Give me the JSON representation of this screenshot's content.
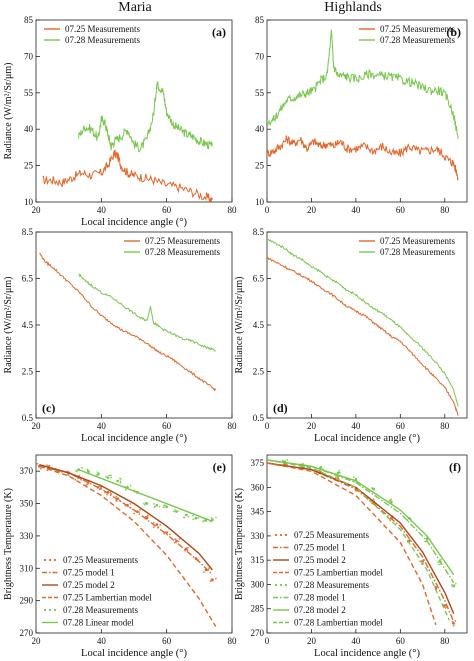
{
  "columns": [
    {
      "title": "Maria"
    },
    {
      "title": "Highlands"
    }
  ],
  "colors": {
    "orange": "#e2672a",
    "green": "#79c64f",
    "axis": "#222222"
  },
  "chart_data": [
    {
      "id": "a",
      "panel_label": "(a)",
      "type": "line",
      "xlabel": "Local incidence angle (°)",
      "ylabel": "Radiance (W/m²/Sr/μm)",
      "xlim": [
        20,
        80
      ],
      "ylim": [
        10,
        85
      ],
      "xticks": [
        "20",
        "40",
        "60",
        "80"
      ],
      "yticks": [
        "10",
        "25",
        "40",
        "55",
        "70",
        "85"
      ],
      "legend_position": "top-left",
      "series": [
        {
          "name": "07.25 Measurements",
          "color": "#e2672a",
          "x": [
            22,
            25,
            28,
            31,
            34,
            37,
            40,
            42,
            44,
            45,
            46,
            48,
            50,
            53,
            56,
            60,
            64,
            68,
            72,
            74
          ],
          "y": [
            19,
            19,
            18,
            20,
            22,
            21,
            22,
            25,
            30,
            29,
            25,
            22,
            21,
            20,
            19,
            17,
            16,
            14,
            12,
            11
          ]
        },
        {
          "name": "07.28 Measurements",
          "color": "#79c64f",
          "x": [
            33,
            35,
            37,
            39,
            40,
            41,
            42,
            43,
            44,
            46,
            48,
            50,
            52,
            54,
            56,
            57,
            58,
            59,
            60,
            62,
            64,
            66,
            68,
            70,
            72,
            74
          ],
          "y": [
            37,
            41,
            40,
            36,
            44,
            43,
            38,
            33,
            35,
            37,
            40,
            34,
            32,
            36,
            46,
            59,
            57,
            55,
            47,
            42,
            40,
            38,
            37,
            35,
            34,
            33
          ]
        }
      ]
    },
    {
      "id": "b",
      "panel_label": "(b)",
      "type": "line",
      "xlabel": "",
      "ylabel": "",
      "xlim": [
        0,
        90
      ],
      "ylim": [
        10,
        85
      ],
      "xticks": [
        "0",
        "20",
        "40",
        "60",
        "80"
      ],
      "yticks": [
        "10",
        "25",
        "40",
        "55",
        "70",
        "85"
      ],
      "legend_position": "top-right",
      "series": [
        {
          "name": "07.25 Measurements",
          "color": "#e2672a",
          "x": [
            0,
            3,
            6,
            9,
            12,
            15,
            18,
            21,
            24,
            27,
            30,
            33,
            36,
            40,
            44,
            48,
            52,
            56,
            60,
            64,
            68,
            72,
            76,
            79,
            82,
            84,
            86
          ],
          "y": [
            30,
            31,
            33,
            36,
            34,
            36,
            32,
            35,
            33,
            34,
            33,
            35,
            32,
            32,
            33,
            31,
            33,
            30,
            30,
            33,
            31,
            31,
            32,
            30,
            27,
            26,
            20
          ]
        },
        {
          "name": "07.28 Measurements",
          "color": "#79c64f",
          "x": [
            0,
            3,
            6,
            9,
            12,
            15,
            18,
            21,
            24,
            27,
            29,
            30,
            32,
            35,
            38,
            42,
            46,
            50,
            54,
            58,
            62,
            66,
            70,
            74,
            78,
            81,
            84,
            86
          ],
          "y": [
            43,
            44,
            48,
            52,
            53,
            54,
            55,
            56,
            60,
            62,
            80,
            66,
            62,
            62,
            61,
            61,
            63,
            62,
            62,
            61,
            60,
            59,
            57,
            56,
            56,
            53,
            46,
            36
          ]
        }
      ]
    },
    {
      "id": "c",
      "panel_label": "(c)",
      "type": "line",
      "xlabel": "Local incidence angle (°)",
      "ylabel": "Radiance (W/m²/Sr/μm)",
      "xlim": [
        20,
        80
      ],
      "ylim": [
        0.5,
        8.5
      ],
      "xticks": [
        "20",
        "40",
        "60",
        "80"
      ],
      "yticks": [
        "0.5",
        "2.5",
        "4.5",
        "6.5",
        "8.5"
      ],
      "legend_position": "top-right",
      "series": [
        {
          "name": "07.25 Measurements",
          "color": "#e2672a",
          "x": [
            21,
            23,
            25,
            28,
            31,
            34,
            37,
            40,
            43,
            46,
            49,
            52,
            55,
            58,
            61,
            64,
            67,
            70,
            73,
            75
          ],
          "y": [
            7.6,
            7.2,
            7.0,
            6.6,
            6.2,
            5.8,
            5.3,
            4.9,
            4.6,
            4.3,
            4.1,
            3.9,
            3.6,
            3.3,
            3.1,
            2.8,
            2.5,
            2.2,
            1.9,
            1.7
          ]
        },
        {
          "name": "07.28 Measurements",
          "color": "#79c64f",
          "x": [
            33,
            35,
            37,
            40,
            43,
            46,
            49,
            52,
            54,
            55,
            56,
            57,
            59,
            62,
            65,
            68,
            71,
            73,
            75
          ],
          "y": [
            6.7,
            6.4,
            6.2,
            5.9,
            5.7,
            5.4,
            5.1,
            4.8,
            4.7,
            5.3,
            4.6,
            4.5,
            4.3,
            4.1,
            3.9,
            3.8,
            3.6,
            3.5,
            3.4
          ]
        }
      ]
    },
    {
      "id": "d",
      "panel_label": "(d)",
      "type": "line",
      "xlabel": "Local incidence angle (°)",
      "ylabel": "Radiance (W/m²/Sr/μm)",
      "xlim": [
        0,
        90
      ],
      "ylim": [
        0.5,
        8.5
      ],
      "xticks": [
        "0",
        "20",
        "40",
        "60",
        "80"
      ],
      "yticks": [
        "0.5",
        "2.5",
        "4.5",
        "6.5",
        "8.5"
      ],
      "legend_position": "top-right",
      "series": [
        {
          "name": "07.25 Measurements",
          "color": "#e2672a",
          "x": [
            0,
            4,
            8,
            12,
            16,
            20,
            24,
            28,
            32,
            36,
            40,
            44,
            48,
            52,
            56,
            60,
            64,
            68,
            72,
            76,
            80,
            84,
            86
          ],
          "y": [
            7.4,
            7.2,
            7.0,
            6.8,
            6.6,
            6.4,
            6.1,
            5.9,
            5.6,
            5.3,
            5.1,
            4.9,
            4.6,
            4.3,
            4.0,
            3.8,
            3.4,
            3.0,
            2.6,
            2.2,
            1.8,
            1.2,
            0.6
          ]
        },
        {
          "name": "07.28 Measurements",
          "color": "#79c64f",
          "x": [
            0,
            4,
            8,
            12,
            16,
            20,
            24,
            28,
            32,
            36,
            40,
            44,
            48,
            52,
            56,
            60,
            64,
            68,
            72,
            76,
            80,
            84,
            86
          ],
          "y": [
            8.2,
            8.0,
            7.8,
            7.5,
            7.3,
            7.0,
            6.8,
            6.5,
            6.3,
            6.0,
            5.8,
            5.5,
            5.2,
            5.0,
            4.7,
            4.4,
            4.0,
            3.7,
            3.3,
            2.9,
            2.4,
            1.7,
            1.0
          ]
        }
      ]
    },
    {
      "id": "e",
      "panel_label": "(e)",
      "type": "line",
      "xlabel": "Local incidence angle (°)",
      "ylabel": "Brightness Temperature (K)",
      "xlim": [
        20,
        80
      ],
      "ylim": [
        270,
        380
      ],
      "xticks": [
        "20",
        "40",
        "60",
        "80"
      ],
      "yticks": [
        "270",
        "290",
        "310",
        "330",
        "350",
        "370"
      ],
      "legend_position": "bottom-left",
      "series": [
        {
          "name": "07.25 Measurements",
          "color": "#e2672a",
          "style": "points",
          "x": [
            21,
            24,
            27,
            30,
            33,
            36,
            39,
            42,
            45,
            48,
            51,
            54,
            57,
            60,
            63,
            66,
            69,
            72,
            74
          ],
          "y": [
            373,
            372,
            370,
            369,
            366,
            363,
            360,
            357,
            353,
            349,
            345,
            341,
            337,
            332,
            327,
            322,
            316,
            309,
            303
          ]
        },
        {
          "name": "07.25 model 1",
          "color": "#e2672a",
          "style": "dashdot",
          "x": [
            21,
            30,
            40,
            50,
            60,
            70,
            74
          ],
          "y": [
            373,
            369,
            359,
            346,
            331,
            314,
            306
          ]
        },
        {
          "name": "07.25 model 2",
          "color": "#a84a18",
          "style": "solid",
          "x": [
            21,
            30,
            40,
            50,
            60,
            70,
            74
          ],
          "y": [
            374,
            369,
            361,
            350,
            336,
            319,
            309
          ]
        },
        {
          "name": "07.25 Lambertian model",
          "color": "#e2672a",
          "style": "dashed",
          "x": [
            21,
            30,
            40,
            50,
            60,
            70,
            75
          ],
          "y": [
            373,
            367,
            355,
            339,
            318,
            291,
            274
          ]
        },
        {
          "name": "07.28 Measurements",
          "color": "#79c64f",
          "style": "points",
          "x": [
            33,
            36,
            39,
            42,
            45,
            48,
            51,
            54,
            57,
            60,
            63,
            66,
            69,
            72,
            74
          ],
          "y": [
            371,
            370,
            368,
            366,
            364,
            360,
            357,
            350,
            349,
            348,
            345,
            343,
            341,
            340,
            340
          ]
        },
        {
          "name": "07.28 Linear model",
          "color": "#79c64f",
          "style": "solid",
          "x": [
            33,
            74
          ],
          "y": [
            371,
            339
          ]
        }
      ]
    },
    {
      "id": "f",
      "panel_label": "(f)",
      "type": "line",
      "xlabel": "Local incidence angle (°)",
      "ylabel": "Brightness Temperature (K)",
      "xlim": [
        0,
        90
      ],
      "ylim": [
        270,
        380
      ],
      "xticks": [
        "0",
        "20",
        "40",
        "60",
        "80"
      ],
      "yticks": [
        "270",
        "285",
        "300",
        "315",
        "330",
        "345",
        "360",
        "375"
      ],
      "legend_position": "bottom-left",
      "series": [
        {
          "name": "07.25 Measurements",
          "color": "#e2672a",
          "style": "points",
          "x": [
            0,
            8,
            16,
            24,
            32,
            40,
            48,
            56,
            64,
            70,
            76,
            80,
            84
          ],
          "y": [
            375,
            374,
            372,
            369,
            365,
            359,
            351,
            341,
            327,
            314,
            298,
            287,
            276
          ]
        },
        {
          "name": "07.25 model 1",
          "color": "#e2672a",
          "style": "dashdot",
          "x": [
            0,
            20,
            40,
            60,
            70,
            80,
            84
          ],
          "y": [
            375,
            371,
            359,
            336,
            317,
            290,
            277
          ]
        },
        {
          "name": "07.25 model 2",
          "color": "#a84a18",
          "style": "solid",
          "x": [
            0,
            20,
            40,
            60,
            70,
            80,
            84
          ],
          "y": [
            375,
            371,
            360,
            338,
            320,
            295,
            282
          ]
        },
        {
          "name": "07.25 Lambertian model",
          "color": "#e2672a",
          "style": "dashed",
          "x": [
            0,
            20,
            40,
            60,
            70,
            76
          ],
          "y": [
            375,
            370,
            355,
            326,
            300,
            275
          ]
        },
        {
          "name": "07.28 Measurements",
          "color": "#79c64f",
          "style": "points",
          "x": [
            0,
            8,
            16,
            24,
            32,
            40,
            48,
            56,
            64,
            72,
            78,
            84
          ],
          "y": [
            377,
            376,
            374,
            372,
            369,
            365,
            359,
            351,
            341,
            328,
            314,
            299
          ]
        },
        {
          "name": "07.28 model 1",
          "color": "#79c64f",
          "style": "dashdot",
          "x": [
            0,
            20,
            40,
            60,
            72,
            84
          ],
          "y": [
            377,
            373,
            363,
            344,
            327,
            301
          ]
        },
        {
          "name": "07.28 model 2",
          "color": "#79c64f",
          "style": "solid",
          "x": [
            0,
            20,
            40,
            60,
            72,
            84
          ],
          "y": [
            377,
            373,
            364,
            346,
            330,
            306
          ]
        },
        {
          "name": "07.28 Lambertian model",
          "color": "#79c64f",
          "style": "dashed",
          "x": [
            0,
            20,
            40,
            60,
            72,
            82
          ],
          "y": [
            377,
            372,
            360,
            334,
            309,
            278
          ]
        }
      ]
    }
  ]
}
